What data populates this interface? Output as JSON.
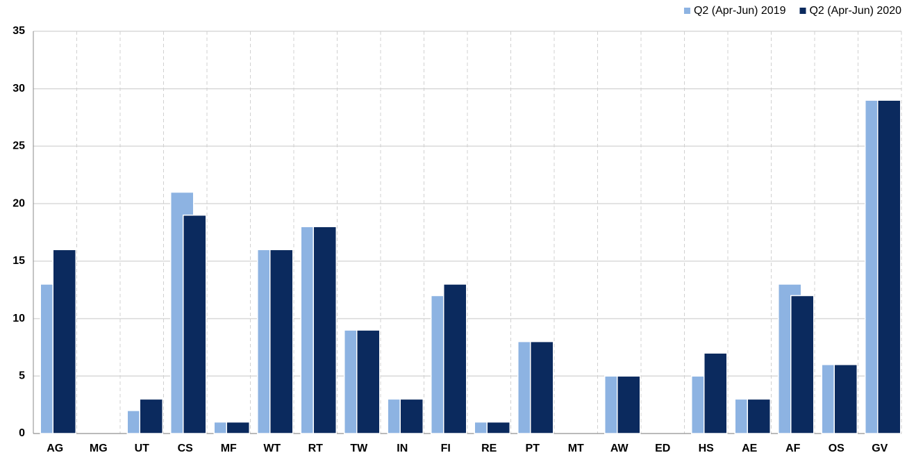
{
  "chart_data": {
    "type": "bar",
    "categories": [
      "AG",
      "MG",
      "UT",
      "CS",
      "MF",
      "WT",
      "RT",
      "TW",
      "IN",
      "FI",
      "RE",
      "PT",
      "MT",
      "AW",
      "ED",
      "HS",
      "AE",
      "AF",
      "OS",
      "GV"
    ],
    "series": [
      {
        "name": "Q2 (Apr-Jun) 2019",
        "color": "#8db3e2",
        "values": [
          13,
          0,
          2,
          21,
          1,
          16,
          18,
          9,
          3,
          12,
          1,
          8,
          0,
          5,
          0,
          5,
          3,
          13,
          6,
          29
        ]
      },
      {
        "name": "Q2 (Apr-Jun) 2020",
        "color": "#0b2a5e",
        "values": [
          16,
          0,
          3,
          19,
          1,
          16,
          18,
          9,
          3,
          13,
          1,
          8,
          0,
          5,
          0,
          7,
          3,
          12,
          6,
          29
        ]
      }
    ],
    "ylim": [
      0,
      35
    ],
    "yticks": [
      0,
      5,
      10,
      15,
      20,
      25,
      30,
      35
    ],
    "grid": true,
    "legend": "top-right"
  }
}
